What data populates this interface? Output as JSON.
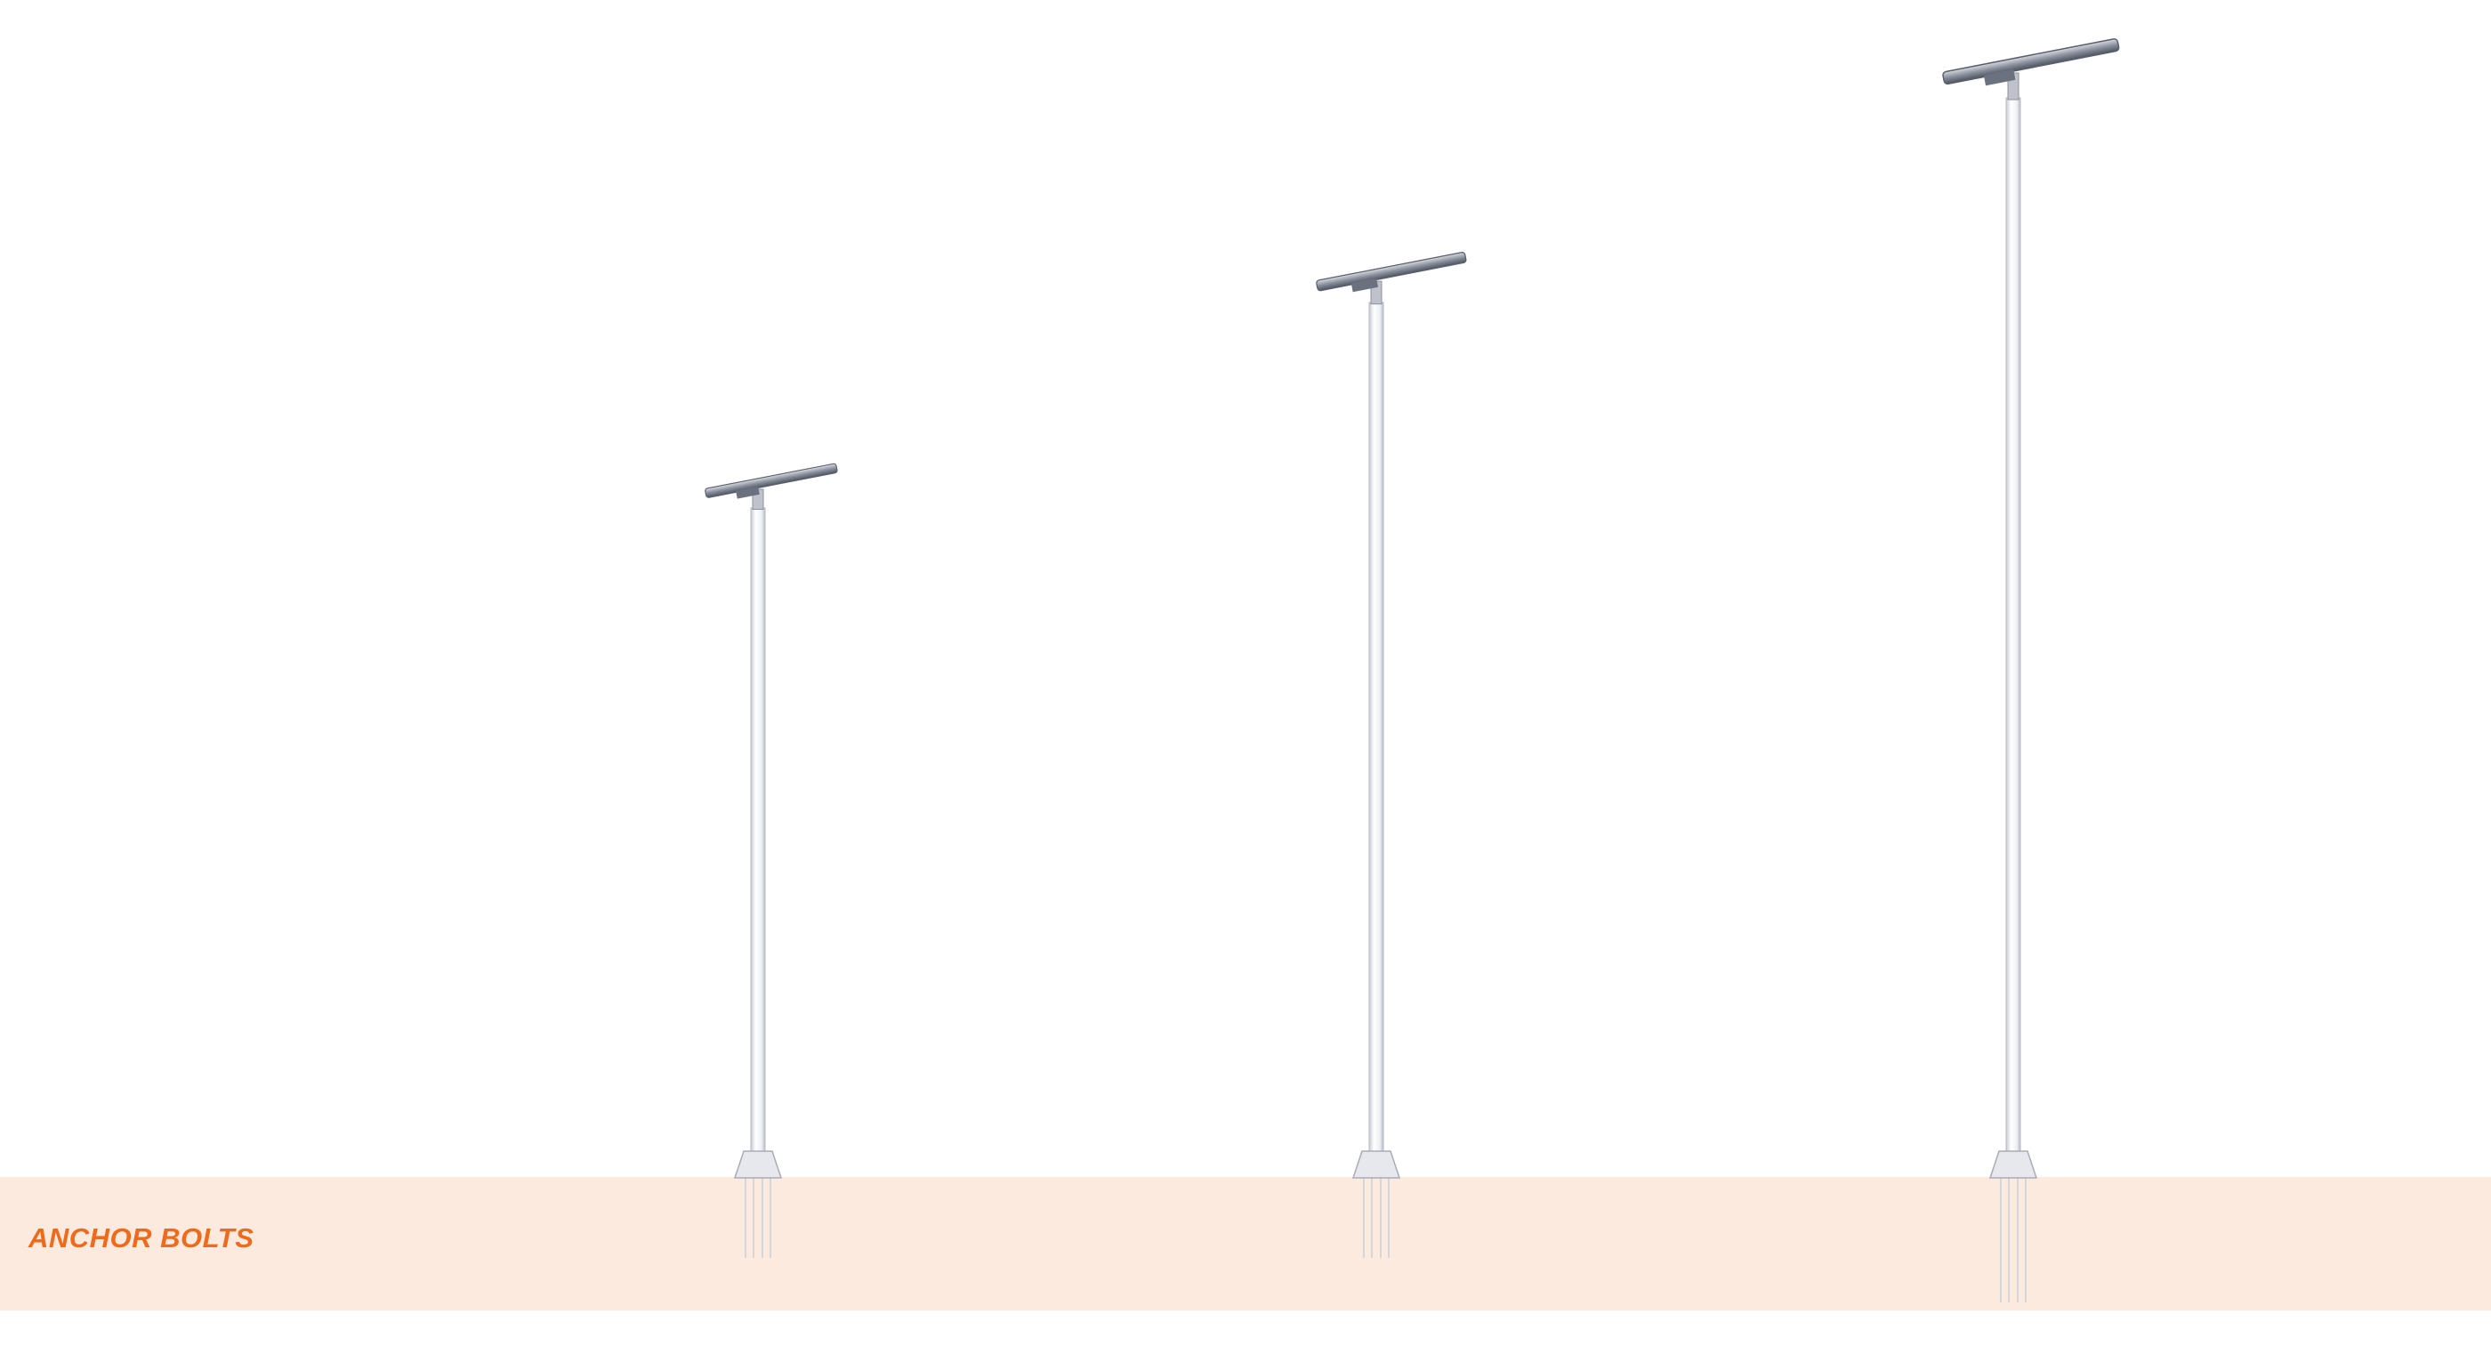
{
  "label": "ANCHOR BOLTS"
}
